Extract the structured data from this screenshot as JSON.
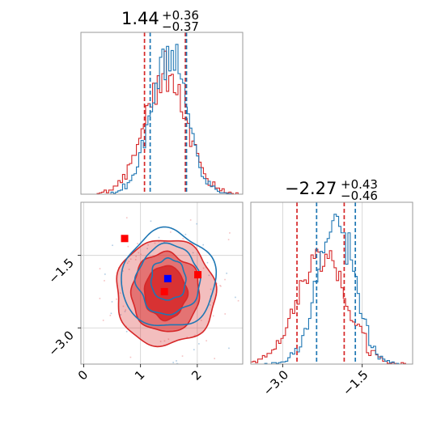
{
  "chart_data": [
    {
      "type": "histogram",
      "panel": "top-left",
      "title": {
        "main": "1.44",
        "sup": "+0.36",
        "sub": "−0.37"
      },
      "xlim": [
        -0.05,
        2.8
      ],
      "grid": false,
      "colors": {
        "red": "#d62728",
        "blue": "#1f77b4"
      },
      "quantiles_red": [
        1.07,
        1.79
      ],
      "quantiles_blue": [
        1.17,
        1.81
      ],
      "series": [
        {
          "color": "red",
          "mu": 1.44,
          "sigma": 0.37,
          "seed": 11
        },
        {
          "color": "blue",
          "mu": 1.49,
          "sigma": 0.31,
          "seed": 23
        }
      ]
    },
    {
      "type": "histogram",
      "panel": "bottom-right",
      "title": {
        "main": "−2.27",
        "sup": "+0.43",
        "sub": "−0.46"
      },
      "xlim": [
        -3.6,
        -0.55
      ],
      "grid": true,
      "x_ticks": [
        -3.0,
        -1.5
      ],
      "x_tick_labels": [
        "−3.0",
        "−1.5"
      ],
      "quantiles_red": [
        -2.73,
        -1.84
      ],
      "quantiles_blue": [
        -2.36,
        -1.63
      ],
      "series": [
        {
          "color": "red",
          "mu": -2.27,
          "sigma": 0.45,
          "seed": 37
        },
        {
          "color": "blue",
          "mu": -1.99,
          "sigma": 0.35,
          "seed": 53
        }
      ]
    },
    {
      "type": "contour",
      "panel": "bottom-left",
      "xlim": [
        -0.05,
        2.8
      ],
      "ylim": [
        -3.75,
        -0.4
      ],
      "grid": true,
      "x_ticks": [
        0,
        1,
        2
      ],
      "x_tick_labels": [
        "0",
        "1",
        "2"
      ],
      "y_ticks": [
        -1.5,
        -3.0
      ],
      "y_tick_labels": [
        "−1.5",
        "−3.0"
      ],
      "red_center": [
        1.44,
        -2.27
      ],
      "red_radii": [
        [
          0.37,
          0.55
        ],
        [
          0.6,
          0.82
        ],
        [
          0.88,
          1.1
        ]
      ],
      "blue_center": [
        1.49,
        -2.0
      ],
      "blue_radii": [
        [
          0.31,
          0.43
        ],
        [
          0.55,
          0.72
        ],
        [
          0.83,
          1.0
        ]
      ],
      "markers": [
        {
          "color": "red",
          "x": 0.72,
          "y": -1.15
        },
        {
          "color": "red",
          "x": 2.01,
          "y": -1.9
        },
        {
          "color": "red",
          "x": 1.42,
          "y": -2.25
        },
        {
          "color": "blue",
          "x": 1.48,
          "y": -1.98
        }
      ]
    }
  ]
}
